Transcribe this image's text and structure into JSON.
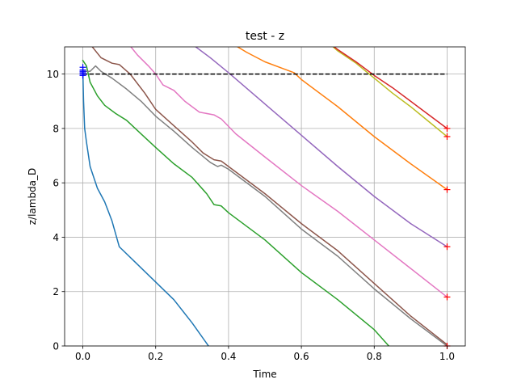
{
  "chart_data": {
    "type": "line",
    "title": "test - z",
    "xlabel": "Time",
    "ylabel": "z/lambda_D",
    "xlim": [
      -0.05,
      1.05
    ],
    "ylim": [
      0,
      11
    ],
    "xticks": [
      0.0,
      0.2,
      0.4,
      0.6,
      0.8,
      1.0
    ],
    "xtick_labels": [
      "0.0",
      "0.2",
      "0.4",
      "0.6",
      "0.8",
      "1.0"
    ],
    "yticks": [
      0,
      2,
      4,
      6,
      8,
      10
    ],
    "ytick_labels": [
      "0",
      "2",
      "4",
      "6",
      "8",
      "10"
    ],
    "grid": true,
    "reference_line": {
      "y": 10,
      "x": [
        0.0,
        1.0
      ],
      "color": "#000000",
      "style": "dashed"
    },
    "start_markers": {
      "x": 0.0,
      "y": [
        10.25,
        10.15,
        10.1,
        10.05,
        10.0,
        9.95
      ],
      "color": "#0000ff",
      "symbol": "+"
    },
    "end_markers": {
      "x": 1.0,
      "y": [
        8.0,
        7.7,
        5.75,
        3.65,
        1.8,
        0.0
      ],
      "color": "#ff0000",
      "symbol": "+"
    },
    "series": [
      {
        "color": "#1f77b4",
        "points": [
          [
            0.0,
            10.1
          ],
          [
            0.002,
            9.0
          ],
          [
            0.005,
            8.0
          ],
          [
            0.01,
            7.5
          ],
          [
            0.02,
            6.6
          ],
          [
            0.04,
            5.8
          ],
          [
            0.06,
            5.3
          ],
          [
            0.08,
            4.6
          ],
          [
            0.1,
            3.65
          ],
          [
            0.15,
            3.0
          ],
          [
            0.2,
            2.35
          ],
          [
            0.25,
            1.7
          ],
          [
            0.3,
            0.85
          ],
          [
            0.345,
            0.0
          ]
        ]
      },
      {
        "color": "#2ca02c",
        "points": [
          [
            0.0,
            10.5
          ],
          [
            0.01,
            10.3
          ],
          [
            0.02,
            9.7
          ],
          [
            0.04,
            9.2
          ],
          [
            0.06,
            8.85
          ],
          [
            0.09,
            8.55
          ],
          [
            0.12,
            8.3
          ],
          [
            0.16,
            7.8
          ],
          [
            0.2,
            7.3
          ],
          [
            0.25,
            6.7
          ],
          [
            0.3,
            6.2
          ],
          [
            0.34,
            5.6
          ],
          [
            0.36,
            5.2
          ],
          [
            0.38,
            5.15
          ],
          [
            0.4,
            4.9
          ],
          [
            0.5,
            3.9
          ],
          [
            0.6,
            2.7
          ],
          [
            0.7,
            1.7
          ],
          [
            0.8,
            0.6
          ],
          [
            0.84,
            0.0
          ]
        ]
      },
      {
        "color": "#7f7f7f",
        "points": [
          [
            0.0,
            10.1
          ],
          [
            0.02,
            10.1
          ],
          [
            0.035,
            10.3
          ],
          [
            0.05,
            10.1
          ],
          [
            0.08,
            9.85
          ],
          [
            0.12,
            9.45
          ],
          [
            0.16,
            9.0
          ],
          [
            0.2,
            8.45
          ],
          [
            0.25,
            7.9
          ],
          [
            0.3,
            7.3
          ],
          [
            0.35,
            6.75
          ],
          [
            0.37,
            6.6
          ],
          [
            0.38,
            6.65
          ],
          [
            0.4,
            6.5
          ],
          [
            0.5,
            5.5
          ],
          [
            0.6,
            4.3
          ],
          [
            0.7,
            3.3
          ],
          [
            0.8,
            2.1
          ],
          [
            0.9,
            1.0
          ],
          [
            1.0,
            0.0
          ]
        ]
      },
      {
        "color": "#8c564b",
        "points": [
          [
            0.0,
            11.2
          ],
          [
            0.02,
            11.1
          ],
          [
            0.05,
            10.6
          ],
          [
            0.08,
            10.4
          ],
          [
            0.1,
            10.35
          ],
          [
            0.13,
            10.0
          ],
          [
            0.17,
            9.3
          ],
          [
            0.2,
            8.7
          ],
          [
            0.25,
            8.1
          ],
          [
            0.3,
            7.5
          ],
          [
            0.33,
            7.1
          ],
          [
            0.36,
            6.85
          ],
          [
            0.38,
            6.8
          ],
          [
            0.4,
            6.6
          ],
          [
            0.5,
            5.6
          ],
          [
            0.6,
            4.5
          ],
          [
            0.7,
            3.5
          ],
          [
            0.8,
            2.3
          ],
          [
            0.9,
            1.1
          ],
          [
            1.0,
            0.05
          ]
        ]
      },
      {
        "color": "#e377c2",
        "points": [
          [
            0.12,
            11.2
          ],
          [
            0.15,
            10.7
          ],
          [
            0.18,
            10.3
          ],
          [
            0.2,
            10.0
          ],
          [
            0.22,
            9.6
          ],
          [
            0.25,
            9.4
          ],
          [
            0.28,
            9.0
          ],
          [
            0.32,
            8.6
          ],
          [
            0.36,
            8.5
          ],
          [
            0.38,
            8.35
          ],
          [
            0.42,
            7.8
          ],
          [
            0.5,
            6.95
          ],
          [
            0.6,
            5.9
          ],
          [
            0.7,
            4.95
          ],
          [
            0.8,
            3.9
          ],
          [
            0.9,
            2.85
          ],
          [
            1.0,
            1.8
          ]
        ]
      },
      {
        "color": "#9467bd",
        "points": [
          [
            0.29,
            11.2
          ],
          [
            0.35,
            10.6
          ],
          [
            0.4,
            10.05
          ],
          [
            0.5,
            8.9
          ],
          [
            0.6,
            7.75
          ],
          [
            0.7,
            6.6
          ],
          [
            0.8,
            5.5
          ],
          [
            0.9,
            4.5
          ],
          [
            1.0,
            3.65
          ]
        ]
      },
      {
        "color": "#ff7f0e",
        "points": [
          [
            0.4,
            11.2
          ],
          [
            0.45,
            10.8
          ],
          [
            0.5,
            10.45
          ],
          [
            0.55,
            10.2
          ],
          [
            0.58,
            10.05
          ],
          [
            0.6,
            9.8
          ],
          [
            0.7,
            8.8
          ],
          [
            0.8,
            7.7
          ],
          [
            0.9,
            6.7
          ],
          [
            1.0,
            5.75
          ]
        ]
      },
      {
        "color": "#bcbd22",
        "points": [
          [
            0.67,
            11.2
          ],
          [
            0.7,
            10.85
          ],
          [
            0.75,
            10.4
          ],
          [
            0.8,
            9.85
          ],
          [
            0.85,
            9.3
          ],
          [
            0.9,
            8.8
          ],
          [
            0.95,
            8.25
          ],
          [
            1.0,
            7.7
          ]
        ]
      },
      {
        "color": "#d62728",
        "points": [
          [
            0.67,
            11.2
          ],
          [
            0.7,
            10.9
          ],
          [
            0.75,
            10.45
          ],
          [
            0.8,
            9.95
          ],
          [
            0.85,
            9.5
          ],
          [
            0.9,
            9.0
          ],
          [
            0.95,
            8.5
          ],
          [
            1.0,
            8.0
          ]
        ]
      }
    ]
  }
}
